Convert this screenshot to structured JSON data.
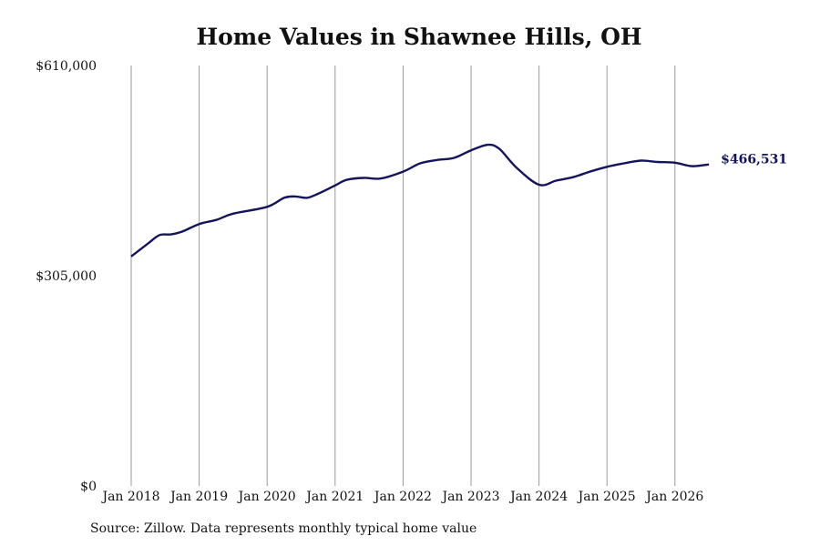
{
  "chart_data": {
    "type": "line",
    "title": "Home Values in Shawnee Hills, OH",
    "xlabel": "",
    "ylabel": "",
    "ylim": [
      0,
      610000
    ],
    "y_ticks": [
      {
        "value": 0,
        "label": "$0"
      },
      {
        "value": 305000,
        "label": "$305,000"
      },
      {
        "value": 610000,
        "label": "$610,000"
      }
    ],
    "x_ticks": [
      {
        "value": "2018-01",
        "label": "Jan 2018"
      },
      {
        "value": "2019-01",
        "label": "Jan 2019"
      },
      {
        "value": "2020-01",
        "label": "Jan 2020"
      },
      {
        "value": "2021-01",
        "label": "Jan 2021"
      },
      {
        "value": "2022-01",
        "label": "Jan 2022"
      },
      {
        "value": "2023-01",
        "label": "Jan 2023"
      },
      {
        "value": "2024-01",
        "label": "Jan 2024"
      },
      {
        "value": "2025-01",
        "label": "Jan 2025"
      },
      {
        "value": "2026-01",
        "label": "Jan 2026"
      }
    ],
    "x_range": [
      "2018-01",
      "2026-07"
    ],
    "grid": "vertical",
    "series": [
      {
        "color": "#14145a",
        "points": [
          {
            "x": "2018-01",
            "y": 333000
          },
          {
            "x": "2018-04",
            "y": 352000
          },
          {
            "x": "2018-06",
            "y": 364000
          },
          {
            "x": "2018-08",
            "y": 365000
          },
          {
            "x": "2018-10",
            "y": 369000
          },
          {
            "x": "2019-01",
            "y": 380000
          },
          {
            "x": "2019-04",
            "y": 386000
          },
          {
            "x": "2019-07",
            "y": 395000
          },
          {
            "x": "2020-01",
            "y": 405000
          },
          {
            "x": "2020-04",
            "y": 418000
          },
          {
            "x": "2020-06",
            "y": 420000
          },
          {
            "x": "2020-08",
            "y": 418000
          },
          {
            "x": "2020-10",
            "y": 424000
          },
          {
            "x": "2021-01",
            "y": 436000
          },
          {
            "x": "2021-03",
            "y": 444000
          },
          {
            "x": "2021-06",
            "y": 447000
          },
          {
            "x": "2021-09",
            "y": 446000
          },
          {
            "x": "2022-01",
            "y": 456000
          },
          {
            "x": "2022-04",
            "y": 468000
          },
          {
            "x": "2022-07",
            "y": 473000
          },
          {
            "x": "2022-10",
            "y": 476000
          },
          {
            "x": "2023-01",
            "y": 487000
          },
          {
            "x": "2023-04",
            "y": 495000
          },
          {
            "x": "2023-06",
            "y": 489000
          },
          {
            "x": "2023-09",
            "y": 462000
          },
          {
            "x": "2024-01",
            "y": 437000
          },
          {
            "x": "2024-04",
            "y": 443000
          },
          {
            "x": "2024-07",
            "y": 448000
          },
          {
            "x": "2024-10",
            "y": 456000
          },
          {
            "x": "2025-01",
            "y": 463000
          },
          {
            "x": "2025-04",
            "y": 468000
          },
          {
            "x": "2025-07",
            "y": 472000
          },
          {
            "x": "2025-10",
            "y": 470000
          },
          {
            "x": "2026-01",
            "y": 469000
          },
          {
            "x": "2026-04",
            "y": 464000
          },
          {
            "x": "2026-07",
            "y": 466531
          }
        ]
      }
    ],
    "last_value_label": "$466,531",
    "source": "Source: Zillow. Data represents monthly typical home value"
  }
}
